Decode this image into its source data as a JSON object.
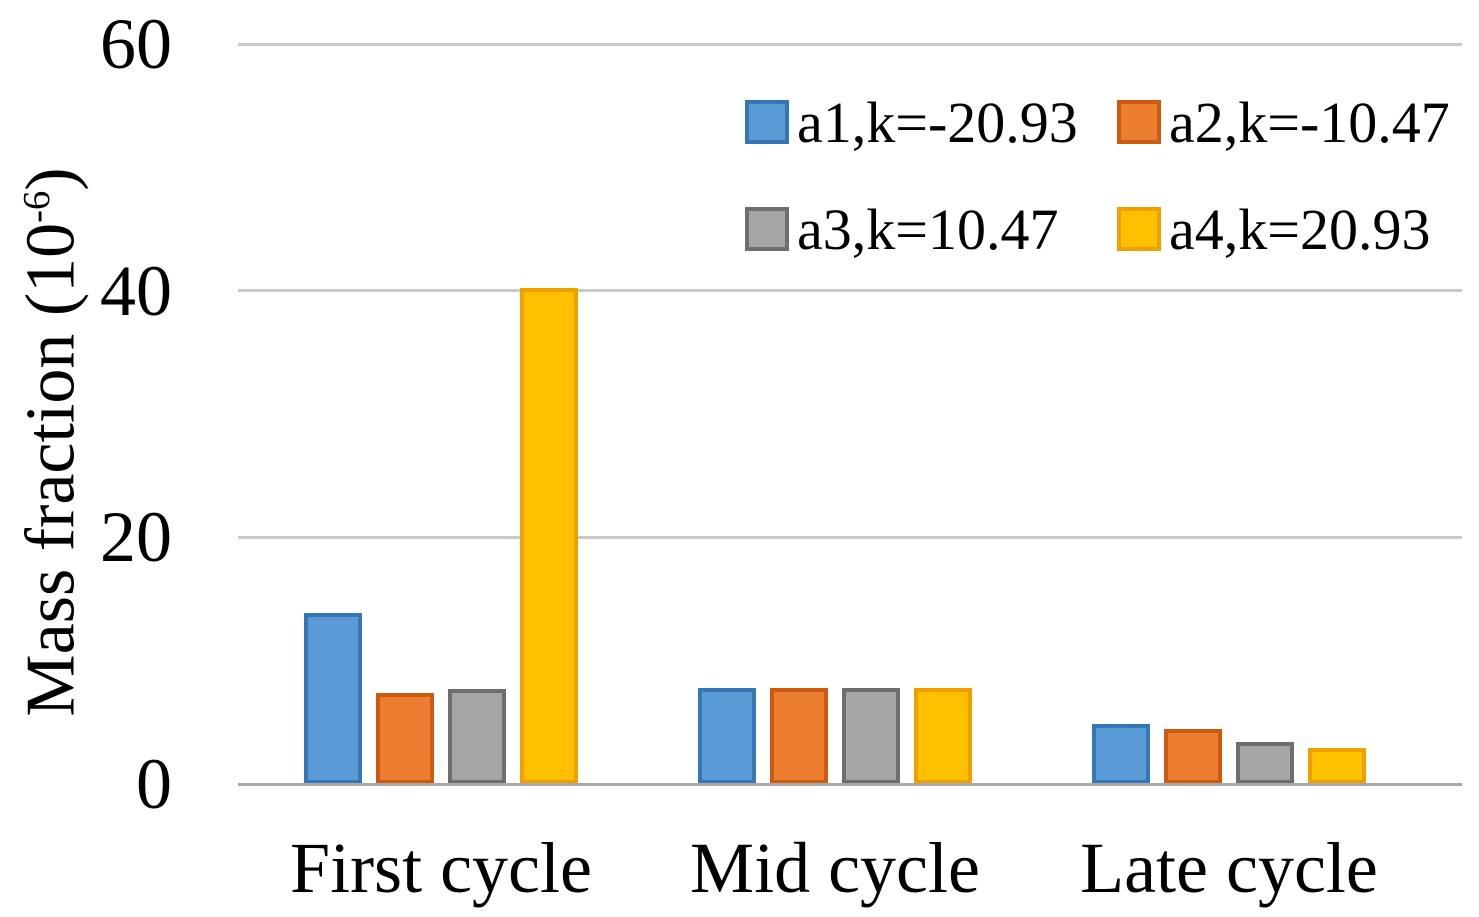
{
  "chart_data": {
    "type": "bar",
    "title": "",
    "categories": [
      "First cycle",
      "Mid cycle",
      "Late cycle"
    ],
    "series": [
      {
        "name": "a1,k=-20.93",
        "color": "#5B9BD5",
        "border_color": "#3576B5",
        "values": [
          13.9,
          7.8,
          4.9
        ]
      },
      {
        "name": "a2,k=-10.47",
        "color": "#ED7D31",
        "border_color": "#CC5A11",
        "values": [
          7.4,
          7.8,
          4.5
        ]
      },
      {
        "name": "a3,k=10.47",
        "color": "#A5A5A5",
        "border_color": "#6E6E6E",
        "values": [
          7.7,
          7.8,
          3.4
        ]
      },
      {
        "name": "a4,k=20.93",
        "color": "#FFC000",
        "border_color": "#EF9F00",
        "values": [
          40.2,
          7.8,
          2.9
        ]
      }
    ],
    "xlabel": "",
    "ylabel": "Mass fraction (10⁻⁶)",
    "ylabel_base": "Mass fraction (10",
    "ylabel_exp": "-6",
    "ylabel_close": ")",
    "ylim": [
      0,
      60
    ],
    "yticks": [
      0,
      20,
      40,
      60
    ],
    "grid": true,
    "gridline_color": "#C9C9C9",
    "axis_line_color": "#A9A9A9",
    "legend_position": "top-right"
  }
}
